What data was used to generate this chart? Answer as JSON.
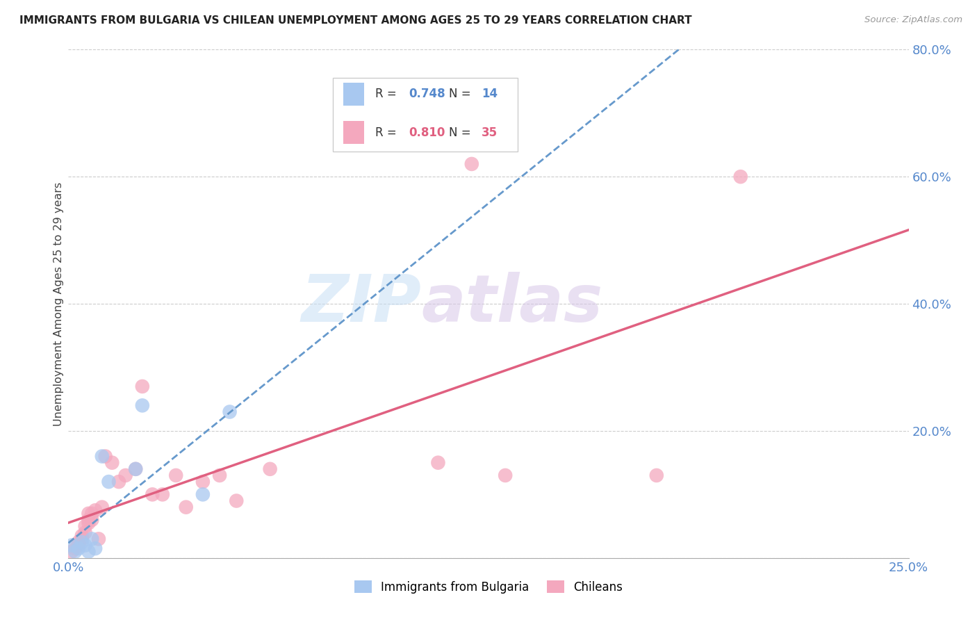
{
  "title": "IMMIGRANTS FROM BULGARIA VS CHILEAN UNEMPLOYMENT AMONG AGES 25 TO 29 YEARS CORRELATION CHART",
  "source": "Source: ZipAtlas.com",
  "ylabel": "Unemployment Among Ages 25 to 29 years",
  "xlim": [
    0.0,
    0.25
  ],
  "ylim": [
    0.0,
    0.8
  ],
  "xticks": [
    0.0,
    0.05,
    0.1,
    0.15,
    0.2,
    0.25
  ],
  "yticks": [
    0.0,
    0.2,
    0.4,
    0.6,
    0.8
  ],
  "watermark_zip": "ZIP",
  "watermark_atlas": "atlas",
  "legend1_r_val": "0.748",
  "legend1_n_val": "14",
  "legend2_r_val": "0.810",
  "legend2_n_val": "35",
  "bulgaria_color": "#a8c8f0",
  "chilean_color": "#f4a8be",
  "line_bulgaria_color": "#6699cc",
  "line_chilean_color": "#e06080",
  "tick_color": "#5588cc",
  "bg_color": "#ffffff",
  "bulgaria_x": [
    0.001,
    0.002,
    0.003,
    0.004,
    0.005,
    0.006,
    0.007,
    0.008,
    0.01,
    0.012,
    0.02,
    0.022,
    0.04,
    0.048
  ],
  "bulgaria_y": [
    0.02,
    0.01,
    0.015,
    0.025,
    0.02,
    0.01,
    0.03,
    0.015,
    0.16,
    0.12,
    0.14,
    0.24,
    0.1,
    0.23
  ],
  "chilean_x": [
    0.001,
    0.002,
    0.003,
    0.003,
    0.004,
    0.004,
    0.005,
    0.005,
    0.006,
    0.006,
    0.006,
    0.007,
    0.007,
    0.008,
    0.009,
    0.01,
    0.011,
    0.013,
    0.015,
    0.017,
    0.02,
    0.022,
    0.025,
    0.028,
    0.032,
    0.035,
    0.04,
    0.045,
    0.05,
    0.06,
    0.11,
    0.12,
    0.13,
    0.175,
    0.2
  ],
  "chilean_y": [
    0.01,
    0.015,
    0.02,
    0.025,
    0.03,
    0.035,
    0.04,
    0.05,
    0.055,
    0.06,
    0.07,
    0.06,
    0.07,
    0.075,
    0.03,
    0.08,
    0.16,
    0.15,
    0.12,
    0.13,
    0.14,
    0.27,
    0.1,
    0.1,
    0.13,
    0.08,
    0.12,
    0.13,
    0.09,
    0.14,
    0.15,
    0.62,
    0.13,
    0.13,
    0.6
  ]
}
